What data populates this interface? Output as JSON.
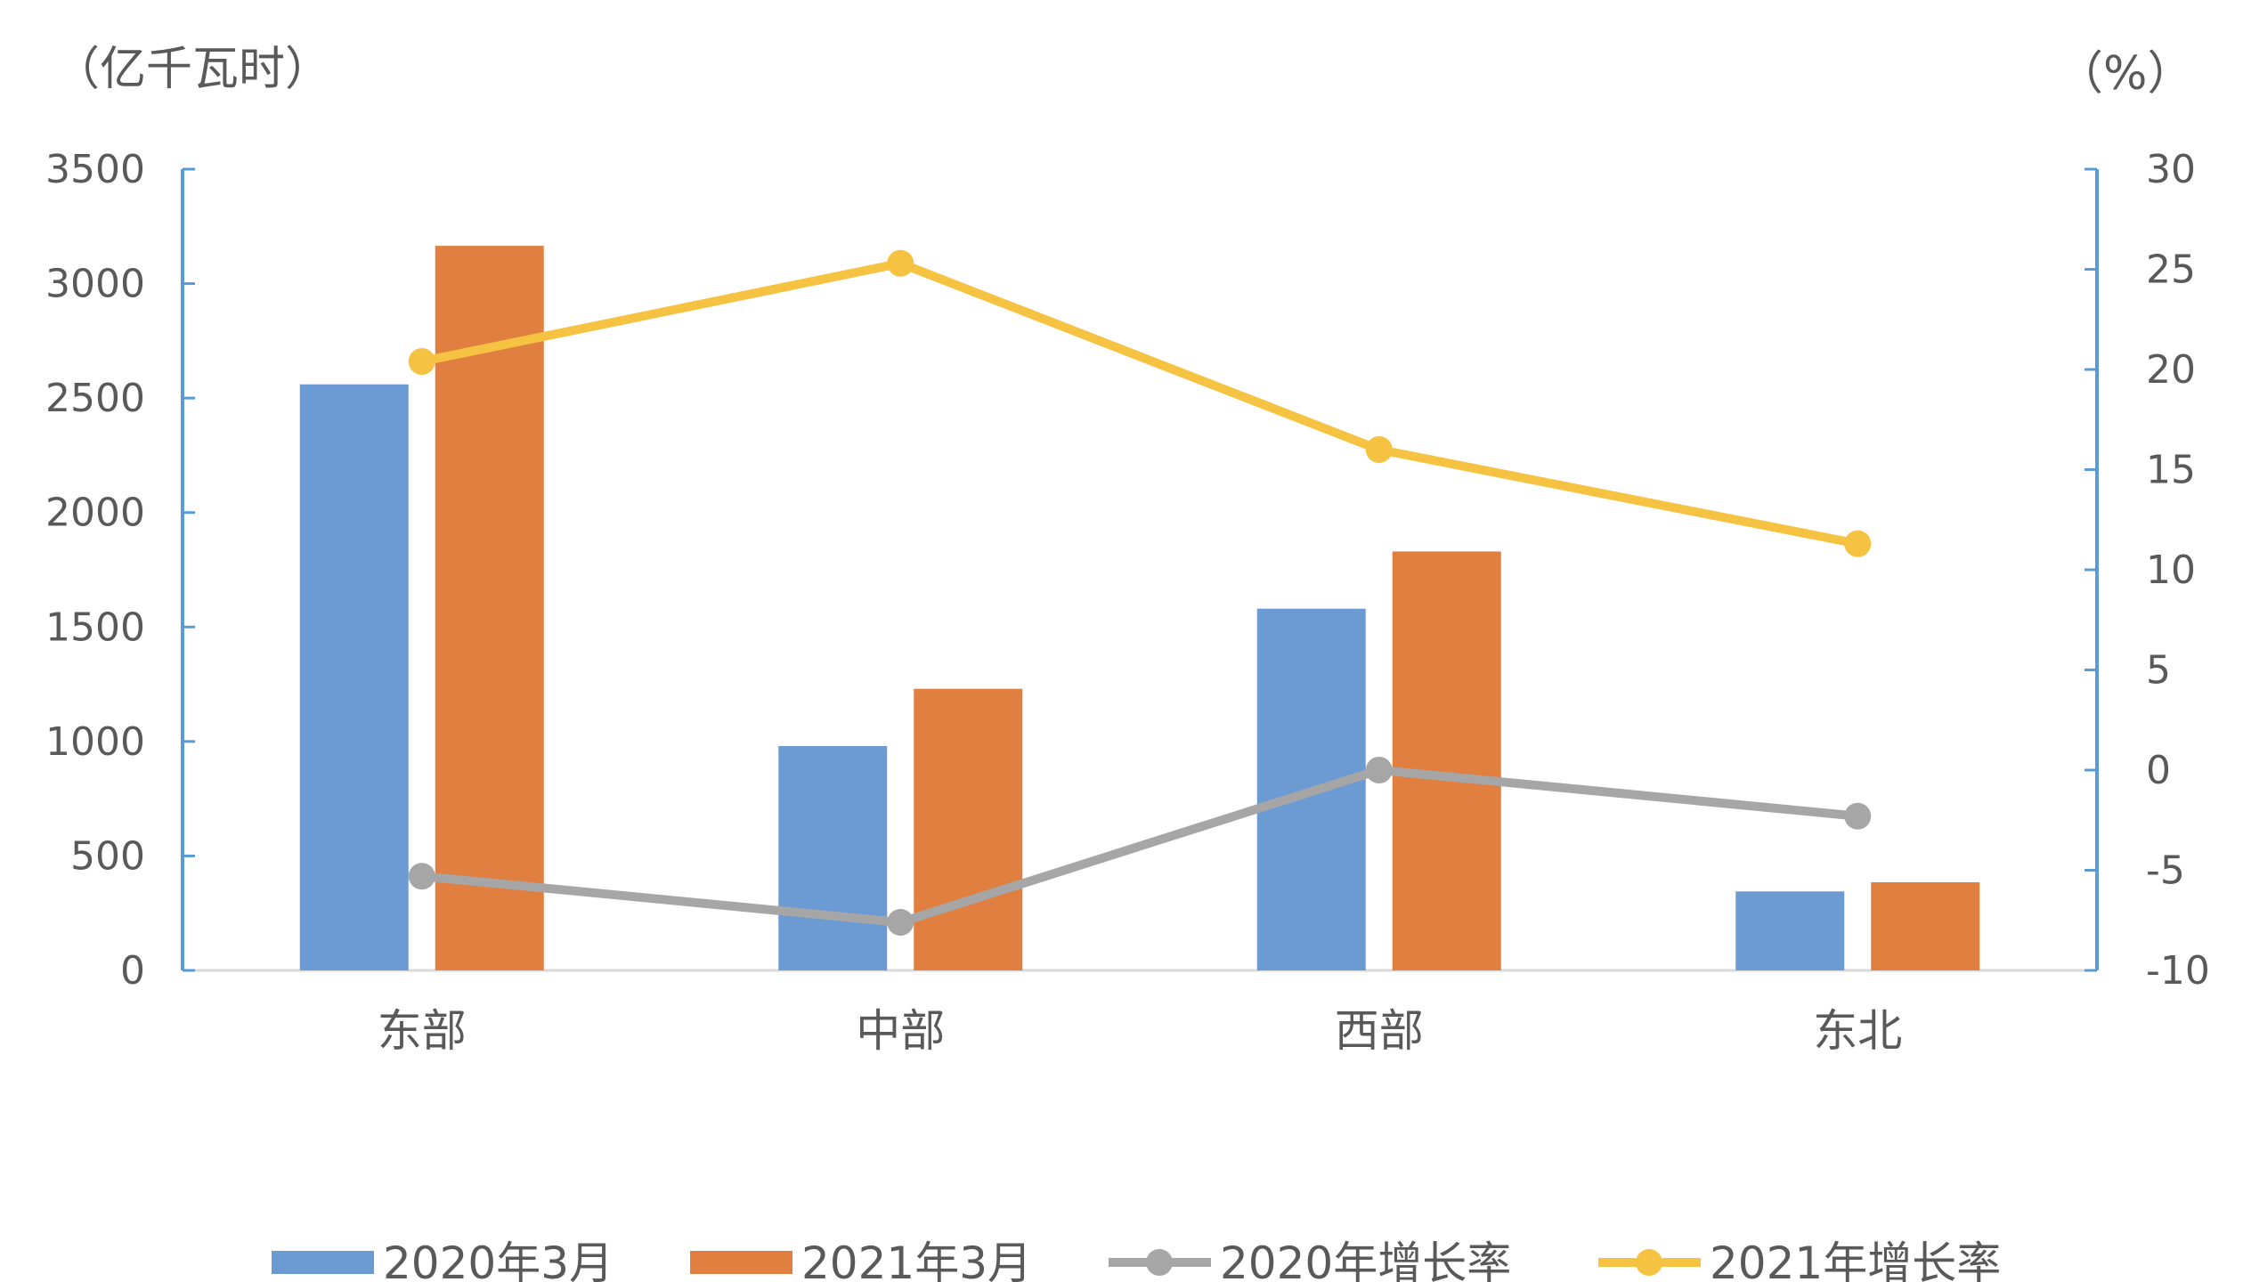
{
  "chart_data": {
    "type": "bar",
    "categories": [
      "东部",
      "中部",
      "西部",
      "东北"
    ],
    "series": [
      {
        "name": "2020年3月",
        "kind": "bar",
        "axis": "left",
        "color": "#6B9BD2",
        "values": [
          2560,
          980,
          1580,
          345
        ]
      },
      {
        "name": "2021年3月",
        "kind": "bar",
        "axis": "left",
        "color": "#E07F40",
        "values": [
          3165,
          1230,
          1830,
          385
        ]
      },
      {
        "name": "2020年增长率",
        "kind": "line",
        "axis": "right",
        "color": "#A6A6A6",
        "values": [
          -5.3,
          -7.6,
          0.0,
          -2.3
        ]
      },
      {
        "name": "2021年增长率",
        "kind": "line",
        "axis": "right",
        "color": "#F5C242",
        "values": [
          20.4,
          25.3,
          16.0,
          11.3
        ]
      }
    ],
    "y_left": {
      "unit": "（亿千瓦时）",
      "ylim": [
        0,
        3500
      ],
      "ticks": [
        0,
        500,
        1000,
        1500,
        2000,
        2500,
        3000,
        3500
      ]
    },
    "y_right": {
      "unit": "（%）",
      "ylim": [
        -10,
        30
      ],
      "ticks": [
        -10,
        -5,
        0,
        5,
        10,
        15,
        20,
        25,
        30
      ]
    },
    "grid": false,
    "legend_position": "bottom"
  }
}
